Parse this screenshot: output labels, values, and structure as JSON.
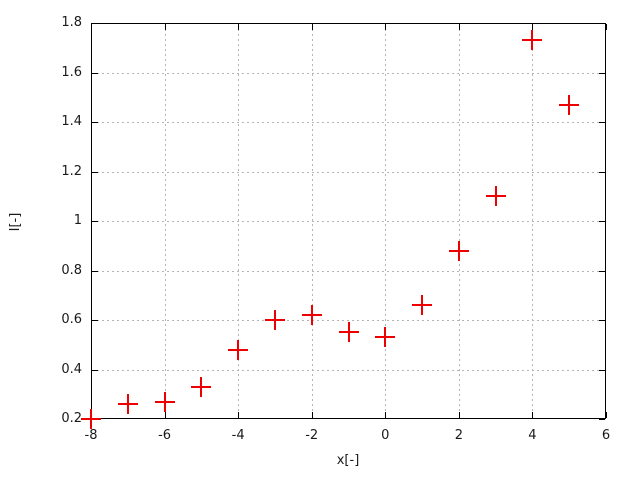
{
  "chart_data": {
    "type": "scatter",
    "title": "",
    "xlabel": "x[-]",
    "ylabel": "I[-]",
    "xlim": [
      -8,
      6
    ],
    "ylim": [
      0.2,
      1.8
    ],
    "xticks": [
      -8,
      -6,
      -4,
      -2,
      0,
      2,
      4,
      6
    ],
    "yticks": [
      0.2,
      0.4,
      0.6,
      0.8,
      1.0,
      1.2,
      1.4,
      1.6,
      1.8
    ],
    "grid": true,
    "legend_position": "none",
    "series": [
      {
        "name": "data",
        "marker": "plus",
        "points": [
          {
            "x": -8,
            "y": 0.2
          },
          {
            "x": -7,
            "y": 0.26
          },
          {
            "x": -6,
            "y": 0.27
          },
          {
            "x": -5,
            "y": 0.33
          },
          {
            "x": -4,
            "y": 0.48
          },
          {
            "x": -3,
            "y": 0.6
          },
          {
            "x": -2,
            "y": 0.62
          },
          {
            "x": -1,
            "y": 0.55
          },
          {
            "x": 0,
            "y": 0.53
          },
          {
            "x": 1,
            "y": 0.66
          },
          {
            "x": 2,
            "y": 0.88
          },
          {
            "x": 3,
            "y": 1.1
          },
          {
            "x": 4,
            "y": 1.73
          },
          {
            "x": 5,
            "y": 1.47
          }
        ]
      }
    ]
  },
  "colors": {
    "marker": "#ee0000",
    "grid": "#b5b5b5",
    "axis": "#000000",
    "background": "#ffffff"
  }
}
